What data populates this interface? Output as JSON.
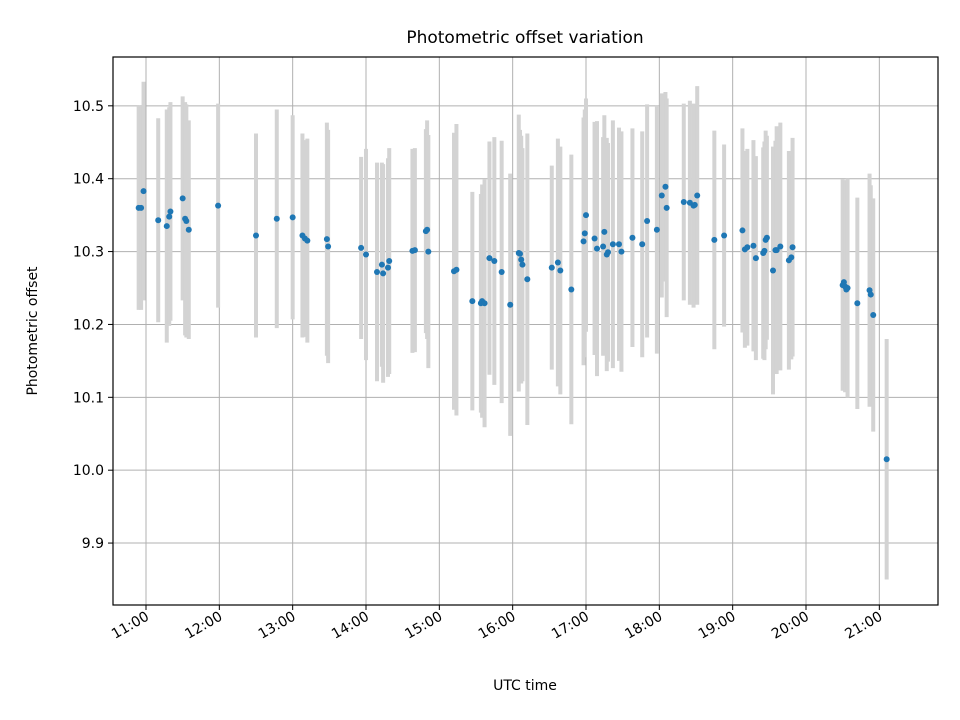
{
  "chart_data": {
    "type": "scatter",
    "title": "Photometric offset variation",
    "xlabel": "UTC time",
    "ylabel": "Photometric offset",
    "x_ticks": [
      "11:00",
      "12:00",
      "13:00",
      "14:00",
      "15:00",
      "16:00",
      "17:00",
      "18:00",
      "19:00",
      "20:00",
      "21:00"
    ],
    "y_ticks": [
      "9.9",
      "10.0",
      "10.1",
      "10.2",
      "10.3",
      "10.4",
      "10.5"
    ],
    "xlim": [
      "10:33",
      "21:48"
    ],
    "ylim": [
      9.815,
      10.567
    ],
    "grid": true,
    "point_color": "#1f77b4",
    "errorbar_color": "#d3d3d3",
    "series": [
      {
        "x": [
          "10:54",
          "10:56",
          "10:58",
          "11:10",
          "11:17",
          "11:19",
          "11:20",
          "11:30",
          "11:32",
          "11:33",
          "11:35",
          "11:59",
          "12:30",
          "12:47",
          "13:00",
          "13:08",
          "13:10",
          "13:12",
          "13:28",
          "13:29",
          "13:56",
          "14:00",
          "14:09",
          "14:13",
          "14:14",
          "14:18",
          "14:19",
          "14:38",
          "14:40",
          "14:49",
          "14:50",
          "14:51",
          "15:12",
          "15:14",
          "15:27",
          "15:34",
          "15:35",
          "15:37",
          "15:41",
          "15:45",
          "15:51",
          "15:58",
          "16:05",
          "16:06",
          "16:07",
          "16:08",
          "16:12",
          "16:32",
          "16:37",
          "16:39",
          "16:48",
          "16:58",
          "16:59",
          "17:00",
          "17:07",
          "17:09",
          "17:14",
          "17:15",
          "17:17",
          "17:18",
          "17:22",
          "17:27",
          "17:29",
          "17:38",
          "17:46",
          "17:50",
          "17:58",
          "18:02",
          "18:05",
          "18:06",
          "18:20",
          "18:25",
          "18:28",
          "18:29",
          "18:31",
          "18:45",
          "18:53",
          "19:08",
          "19:10",
          "19:12",
          "19:17",
          "19:19",
          "19:25",
          "19:26",
          "19:27",
          "19:28",
          "19:33",
          "19:35",
          "19:36",
          "19:39",
          "19:46",
          "19:48",
          "19:49",
          "20:30",
          "20:31",
          "20:32",
          "20:33",
          "20:34",
          "20:42",
          "20:52",
          "20:53",
          "20:55",
          "21:06"
        ],
        "y": [
          10.36,
          10.36,
          10.383,
          10.343,
          10.335,
          10.348,
          10.355,
          10.373,
          10.345,
          10.342,
          10.33,
          10.363,
          10.322,
          10.345,
          10.347,
          10.322,
          10.318,
          10.315,
          10.317,
          10.307,
          10.305,
          10.296,
          10.272,
          10.282,
          10.27,
          10.278,
          10.287,
          10.301,
          10.302,
          10.328,
          10.33,
          10.3,
          10.273,
          10.275,
          10.232,
          10.229,
          10.232,
          10.229,
          10.291,
          10.287,
          10.272,
          10.227,
          10.298,
          10.297,
          10.289,
          10.282,
          10.262,
          10.278,
          10.285,
          10.274,
          10.248,
          10.314,
          10.325,
          10.35,
          10.318,
          10.304,
          10.307,
          10.327,
          10.296,
          10.299,
          10.31,
          10.31,
          10.3,
          10.319,
          10.31,
          10.342,
          10.33,
          10.377,
          10.389,
          10.36,
          10.368,
          10.367,
          10.363,
          10.364,
          10.377,
          10.316,
          10.322,
          10.329,
          10.303,
          10.306,
          10.308,
          10.291,
          10.298,
          10.301,
          10.316,
          10.319,
          10.274,
          10.302,
          10.302,
          10.307,
          10.288,
          10.292,
          10.306,
          10.254,
          10.258,
          10.252,
          10.248,
          10.25,
          10.229,
          10.247,
          10.241,
          10.213,
          10.015
        ],
        "err": [
          0.14,
          0.14,
          0.15,
          0.14,
          0.16,
          0.15,
          0.15,
          0.14,
          0.16,
          0.16,
          0.15,
          0.14,
          0.14,
          0.15,
          0.14,
          0.14,
          0.135,
          0.14,
          0.16,
          0.16,
          0.125,
          0.145,
          0.15,
          0.14,
          0.15,
          0.15,
          0.155,
          0.14,
          0.14,
          0.14,
          0.15,
          0.16,
          0.19,
          0.2,
          0.15,
          0.15,
          0.16,
          0.17,
          0.16,
          0.17,
          0.18,
          0.18,
          0.19,
          0.17,
          0.17,
          0.16,
          0.2,
          0.14,
          0.17,
          0.17,
          0.185,
          0.17,
          0.17,
          0.16,
          0.16,
          0.175,
          0.15,
          0.16,
          0.16,
          0.15,
          0.17,
          0.16,
          0.165,
          0.15,
          0.155,
          0.16,
          0.17,
          0.14,
          0.13,
          0.15,
          0.135,
          0.14,
          0.14,
          0.13,
          0.15,
          0.15,
          0.125,
          0.14,
          0.135,
          0.135,
          0.145,
          0.14,
          0.145,
          0.15,
          0.15,
          0.14,
          0.17,
          0.15,
          0.17,
          0.17,
          0.15,
          0.14,
          0.15,
          0.145,
          0.14,
          0.145,
          0.14,
          0.15,
          0.145,
          0.16,
          0.15,
          0.16,
          0.165
        ]
      }
    ]
  }
}
